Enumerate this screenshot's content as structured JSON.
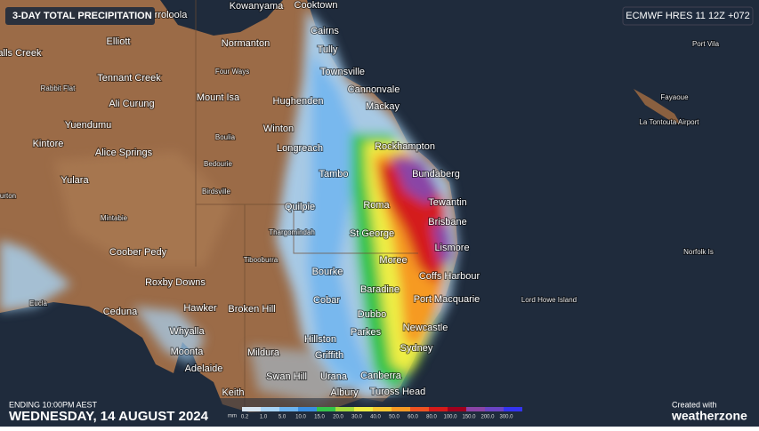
{
  "header": {
    "title": "3-DAY TOTAL PRECIPITATION",
    "model": "ECMWF HRES 11 12Z +072"
  },
  "footer": {
    "ending": "ENDING 10:00PM AEST",
    "date": "WEDNESDAY, 14 AUGUST 2024",
    "credit": "Created with",
    "brand": "weatherzone"
  },
  "legend": {
    "unit": "mm",
    "labels": [
      "0.2",
      "1.0",
      "5.0",
      "10.0",
      "15.0",
      "20.0",
      "30.0",
      "40.0",
      "50.0",
      "60.0",
      "80.0",
      "100.0",
      "150.0",
      "200.0",
      "300.0"
    ],
    "colors": [
      "#d8e6f2",
      "#a8d4f6",
      "#6cb4f0",
      "#3a8ee0",
      "#34c44a",
      "#a6dc3c",
      "#eeee44",
      "#f6c832",
      "#f69a24",
      "#ee5222",
      "#d41a1a",
      "#a0001e",
      "#8a44a6",
      "#6a44c4",
      "#3434f0"
    ]
  },
  "places": [
    "Kowanyama",
    "Cooktown",
    "Cairns",
    "Tully",
    "Townsville",
    "Cannonvale",
    "Mackay",
    "Hughenden",
    "Winton",
    "Longreach",
    "Rockhampton",
    "Bundaberg",
    "Tambo",
    "Tewantin",
    "Roma",
    "Quilpie",
    "Brisbane",
    "St George",
    "Thargomindah",
    "Lismore",
    "Moree",
    "Tibooburra",
    "Bourke",
    "Coffs Harbour",
    "Baradine",
    "Cobar",
    "Port Macquarie",
    "Dubbo",
    "Broken Hill",
    "Hawker",
    "Parkes",
    "Newcastle",
    "Hillston",
    "Sydney",
    "Mildura",
    "Griffith",
    "Urana",
    "Canberra",
    "Swan Hill",
    "Albury",
    "Tuross Head",
    "Keith",
    "Adelaide",
    "Moonta",
    "Whyalla",
    "Ceduna",
    "Roxby Downs",
    "Coober Pedy",
    "Mintabie",
    "Yulara",
    "Kintore",
    "Alice Springs",
    "Yuendumu",
    "Ali Curung",
    "Rabbit Flat",
    "Tennant Creek",
    "Elliott",
    "alls Creek",
    "Normanton",
    "Four Ways",
    "Mount Isa",
    "Boulia",
    "Bedourie",
    "Birdsville",
    "rroloola",
    "urton",
    "Eucla",
    "Port Vila",
    "Fayaoue",
    "La Tontouta Airport",
    "Norfolk Is",
    "Lord Howe Island"
  ]
}
